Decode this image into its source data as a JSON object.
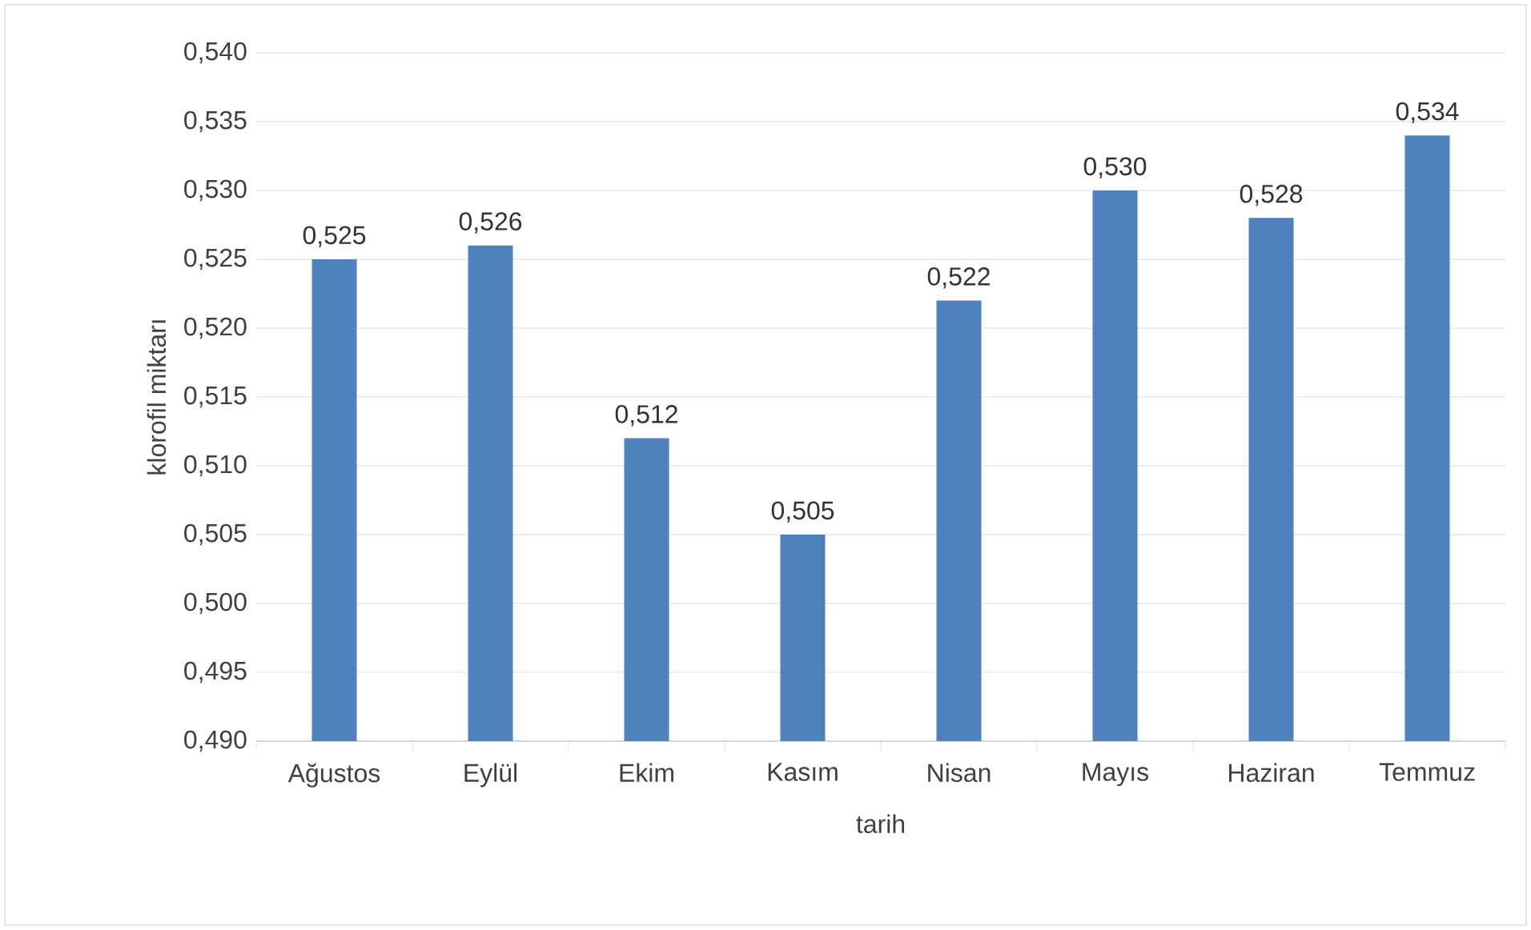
{
  "chart_data": {
    "type": "bar",
    "xlabel": "tarih",
    "ylabel": "klorofil miktarı",
    "categories": [
      "Ağustos",
      "Eylül",
      "Ekim",
      "Kasım",
      "Nisan",
      "Mayıs",
      "Haziran",
      "Temmuz"
    ],
    "values": [
      0.525,
      0.526,
      0.512,
      0.505,
      0.522,
      0.53,
      0.528,
      0.534
    ],
    "value_labels": [
      "0,525",
      "0,526",
      "0,512",
      "0,505",
      "0,522",
      "0,530",
      "0,528",
      "0,534"
    ],
    "color": "#4f81bd",
    "ylim": [
      0.49,
      0.54
    ],
    "yticks": [
      {
        "value": 0.49,
        "label": "0,490"
      },
      {
        "value": 0.495,
        "label": "0,495"
      },
      {
        "value": 0.5,
        "label": "0,500"
      },
      {
        "value": 0.505,
        "label": "0,505"
      },
      {
        "value": 0.51,
        "label": "0,510"
      },
      {
        "value": 0.515,
        "label": "0,515"
      },
      {
        "value": 0.52,
        "label": "0,520"
      },
      {
        "value": 0.525,
        "label": "0,525"
      },
      {
        "value": 0.53,
        "label": "0,530"
      },
      {
        "value": 0.535,
        "label": "0,535"
      },
      {
        "value": 0.54,
        "label": "0,540"
      }
    ],
    "grid": "y"
  }
}
